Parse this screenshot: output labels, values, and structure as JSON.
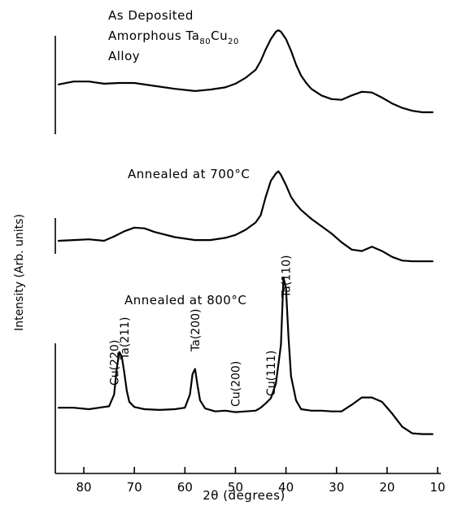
{
  "chart_data": {
    "type": "line",
    "xlabel": "2θ (degrees)",
    "ylabel": "Intensity (Arb. units)",
    "xlim": [
      85,
      10
    ],
    "x_reversed": true,
    "x_ticks": [
      80,
      70,
      60,
      50,
      40,
      30,
      20,
      10
    ],
    "y_ticks": "none",
    "grid": false,
    "series": [
      {
        "name": "As Deposited Amorphous Ta80Cu20 Alloy",
        "label_lines": [
          "As Deposited",
          "Amorphous Ta",
          "Alloy"
        ],
        "label_sub": {
          "ta": "80",
          "cu": "20"
        },
        "x": [
          85,
          82,
          79,
          76,
          73,
          70,
          66,
          62,
          58,
          55,
          52,
          50,
          48,
          46,
          45,
          44,
          43,
          42,
          41.5,
          41,
          40,
          39,
          38,
          37,
          36,
          35,
          33,
          31,
          29,
          27,
          25,
          23,
          21,
          19,
          17,
          15,
          13,
          11
        ],
        "y": [
          0.18,
          0.22,
          0.22,
          0.19,
          0.2,
          0.2,
          0.16,
          0.12,
          0.09,
          0.11,
          0.14,
          0.19,
          0.27,
          0.38,
          0.5,
          0.66,
          0.8,
          0.9,
          0.92,
          0.9,
          0.8,
          0.64,
          0.45,
          0.3,
          0.2,
          0.12,
          0.03,
          -0.02,
          -0.03,
          0.03,
          0.08,
          0.07,
          0.0,
          -0.08,
          -0.14,
          -0.18,
          -0.2,
          -0.2
        ]
      },
      {
        "name": "Annealed at 700°C",
        "x": [
          85,
          82,
          79,
          76,
          74,
          72,
          70,
          68,
          66,
          62,
          58,
          55,
          52,
          50,
          48,
          46,
          45,
          44,
          43,
          42,
          41.5,
          41,
          40,
          39,
          38,
          37,
          36,
          35,
          33,
          31,
          29,
          27,
          25,
          23,
          21,
          19,
          17,
          15,
          13,
          11
        ],
        "y": [
          0.0,
          0.01,
          0.02,
          0.0,
          0.06,
          0.13,
          0.18,
          0.17,
          0.12,
          0.05,
          0.01,
          0.01,
          0.04,
          0.08,
          0.15,
          0.25,
          0.35,
          0.6,
          0.82,
          0.92,
          0.95,
          0.9,
          0.76,
          0.6,
          0.5,
          0.42,
          0.36,
          0.3,
          0.2,
          0.1,
          -0.02,
          -0.12,
          -0.14,
          -0.08,
          -0.14,
          -0.22,
          -0.27,
          -0.28,
          -0.28,
          -0.28
        ]
      },
      {
        "name": "Annealed at 800°C",
        "x": [
          85,
          82,
          79,
          77,
          75,
          74,
          73.5,
          73,
          72.5,
          72,
          71.5,
          71,
          70,
          68,
          65,
          62,
          60,
          59,
          58.5,
          58,
          57.5,
          57,
          56,
          54,
          52,
          50,
          48,
          46,
          45,
          44,
          43,
          42,
          41,
          40.5,
          40,
          39.5,
          39,
          38,
          37,
          35,
          33,
          31,
          29,
          27,
          25,
          23,
          21,
          19,
          17,
          15,
          13,
          11
        ],
        "y": [
          0.02,
          0.02,
          0.0,
          0.02,
          0.04,
          0.2,
          0.55,
          0.78,
          0.72,
          0.5,
          0.25,
          0.1,
          0.03,
          0.0,
          -0.01,
          0.0,
          0.02,
          0.2,
          0.48,
          0.55,
          0.32,
          0.12,
          0.01,
          -0.03,
          -0.02,
          -0.04,
          -0.03,
          -0.02,
          0.02,
          0.08,
          0.15,
          0.35,
          0.88,
          1.8,
          1.65,
          0.98,
          0.45,
          0.12,
          0.0,
          -0.02,
          -0.02,
          -0.03,
          -0.03,
          0.06,
          0.16,
          0.16,
          0.1,
          -0.06,
          -0.24,
          -0.33,
          -0.34,
          -0.34
        ]
      }
    ],
    "peak_annotations": [
      {
        "text": "Cu(220)",
        "x": 74
      },
      {
        "text": "Ta(211)",
        "x": 72
      },
      {
        "text": "Ta(200)",
        "x": 58
      },
      {
        "text": "Cu(200)",
        "x": 50
      },
      {
        "text": "Cu(111)",
        "x": 43
      },
      {
        "text": "Ta(110)",
        "x": 40
      }
    ]
  }
}
